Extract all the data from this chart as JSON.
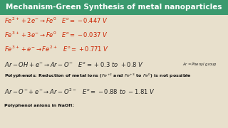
{
  "title": "Mechanism-Green Synthesis of metal nanoparticles",
  "title_bg": "#3a9a6e",
  "title_color": "white",
  "bg_color": "#e8e0cc",
  "line1": "$Fe^{2+} + 2e^{-} \\rightarrow Fe^{0}$   $E^{o} = -0.447\\ V$",
  "line2": "$Fe^{3+} + 3e^{-} \\rightarrow Fe^{0}$   $E^{o} = -0.037\\ V$",
  "line3": "$Fe^{3+} + e^{-} \\rightarrow Fe^{2+}$   $E^{o} = +0.771\\ V$",
  "line4": "$Ar - OH + e^{-} \\rightarrow Ar - O^{-}$   $E^{o} = +0.3\\ to\\ +0.8\\ V$",
  "line4_note": "$Ar = Phenyl\\ group$",
  "line5": "Polyphenols: Reduction of metal ions ($Fe^{+2}$ and $Fe^{+3}$ to $Fe^{0}$) is not possible",
  "line6": "$Ar - O^{-} + e^{-} \\rightarrow Ar - O^{2-}$   $E^{o} = -0.88\\ to\\ -1.81\\ V$",
  "line7": "Polyphenol anions in NaOH:",
  "red_color": "#cc2200",
  "black_color": "#111111",
  "dark_color": "#222222",
  "fs_title": 7.5,
  "fs_eq": 6.0,
  "fs_small": 4.5,
  "fs_note": 3.8
}
